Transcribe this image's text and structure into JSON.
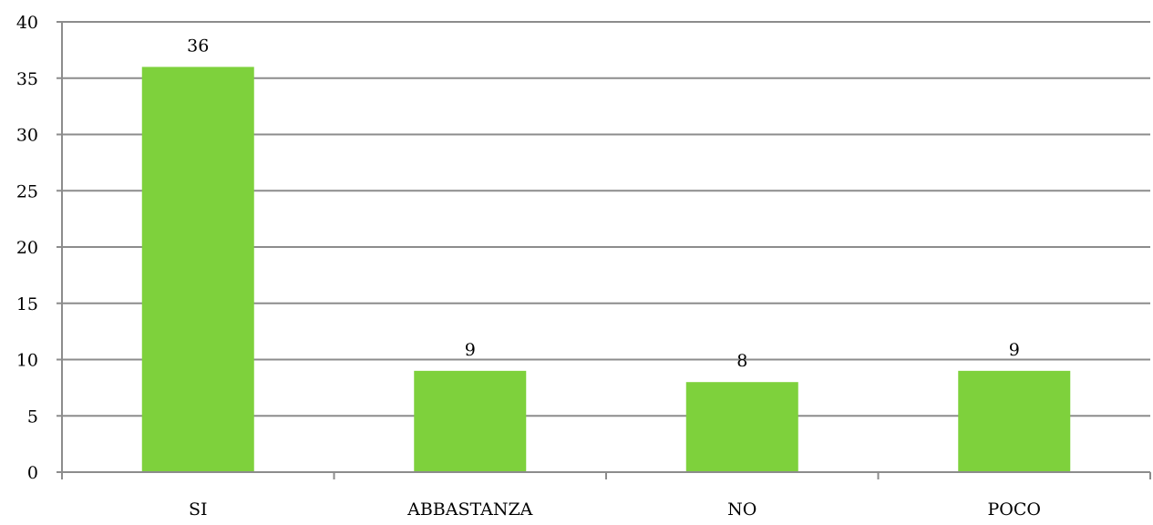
{
  "chart_data": {
    "type": "bar",
    "categories": [
      "SI",
      "ABBASTANZA",
      "NO",
      "POCO"
    ],
    "values": [
      36,
      9,
      8,
      9
    ],
    "data_labels": [
      "36",
      "9",
      "8",
      "9"
    ],
    "title": "",
    "xlabel": "",
    "ylabel": "",
    "ylim": [
      0,
      40
    ],
    "ytick_step": 5,
    "yticks": [
      "0",
      "5",
      "10",
      "15",
      "20",
      "25",
      "30",
      "35",
      "40"
    ],
    "grid": "horizontal",
    "legend": "none",
    "colors": {
      "bar": "#7ed13c",
      "grid": "#8c8c8c",
      "axis": "#8c8c8c"
    }
  }
}
